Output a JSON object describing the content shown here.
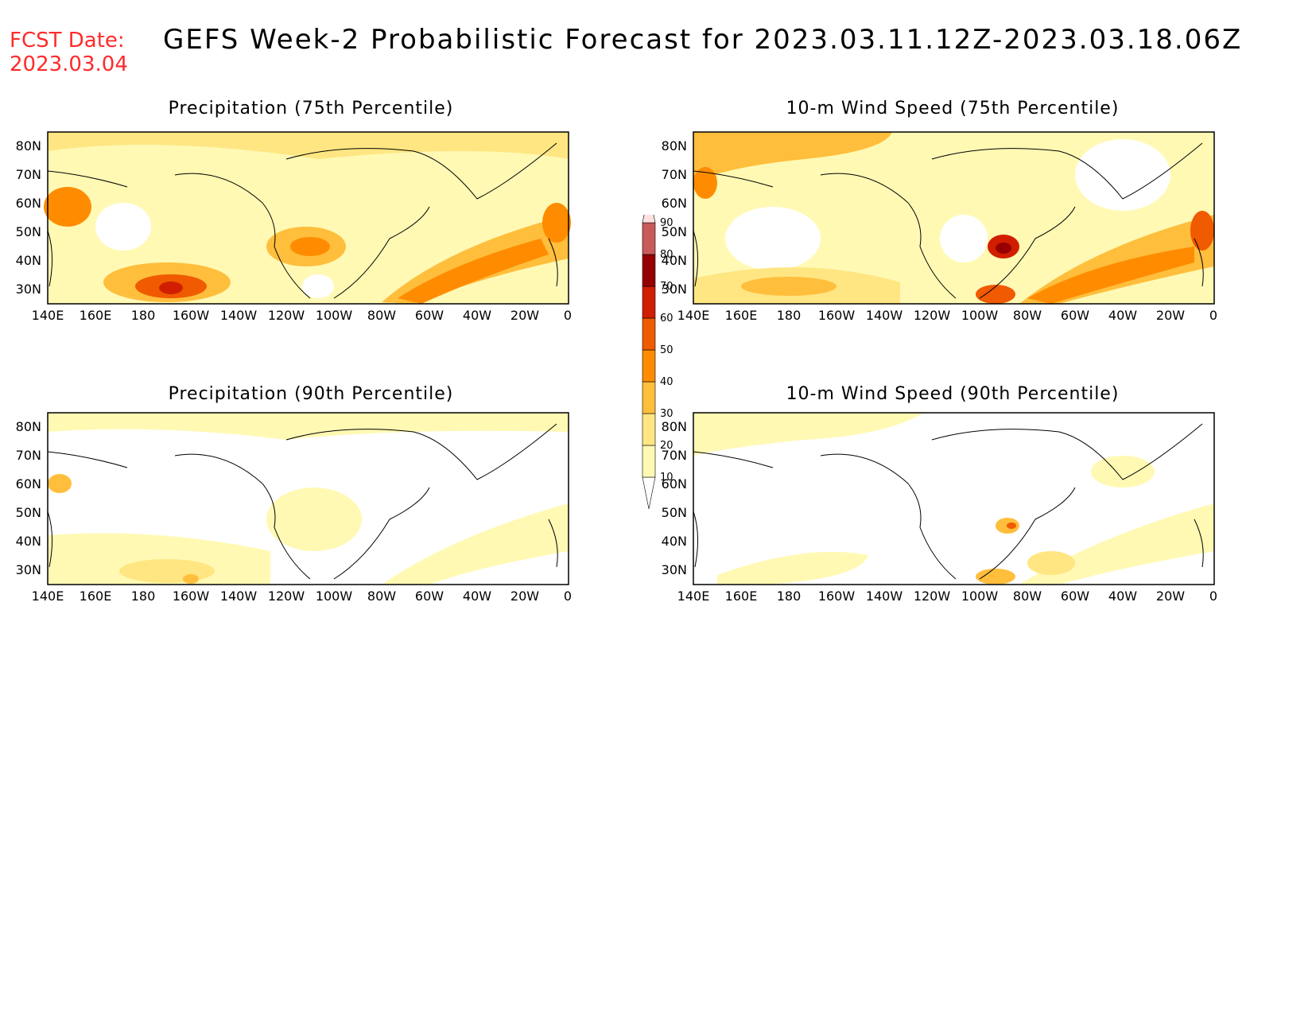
{
  "header": {
    "fcst_label": "FCST Date:",
    "fcst_date": "2023.03.04",
    "title": "GEFS Week-2 Probabilistic Forecast for 2023.03.11.12Z-2023.03.18.06Z"
  },
  "panels": [
    {
      "id": "precip-75",
      "title": "Precipitation (75th Percentile)",
      "intensity": 3
    },
    {
      "id": "wind-75",
      "title": "10-m Wind Speed (75th Percentile)",
      "intensity": 3
    },
    {
      "id": "precip-90",
      "title": "Precipitation (90th Percentile)",
      "intensity": 1
    },
    {
      "id": "wind-90",
      "title": "10-m Wind Speed (90th Percentile)",
      "intensity": 1
    }
  ],
  "axes": {
    "lat_labels": [
      "80N",
      "70N",
      "60N",
      "50N",
      "40N",
      "30N"
    ],
    "lon_labels": [
      "140E",
      "160E",
      "180",
      "160W",
      "140W",
      "120W",
      "100W",
      "80W",
      "60W",
      "40W",
      "20W",
      "0"
    ]
  },
  "colorbar": {
    "levels": [
      "10",
      "20",
      "30",
      "40",
      "50",
      "60",
      "70",
      "80",
      "90"
    ],
    "colors": [
      "#fff9b4",
      "#ffe682",
      "#ffbe3c",
      "#ff8c00",
      "#f05a00",
      "#d21e00",
      "#960000",
      "#c85a5a",
      "#f0a0a0",
      "#fde0e0"
    ]
  }
}
